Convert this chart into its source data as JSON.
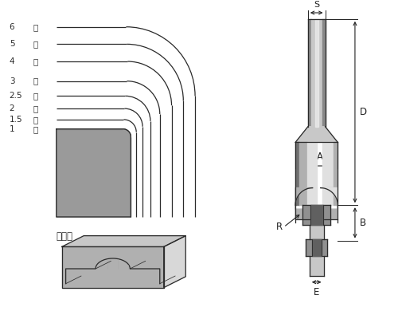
{
  "bg_color": "#ffffff",
  "line_color": "#2a2a2a",
  "profile_labels": [
    "6",
    "5",
    "4",
    "3",
    "2.5",
    "2",
    "1.5",
    "1"
  ],
  "label_suffix": "分",
  "workpiece_label": "被削材",
  "dim_labels": [
    "S",
    "D",
    "A",
    "B",
    "R",
    "E"
  ],
  "shank_color": "#c8c8c8",
  "shank_edge": "#666666",
  "shank_light": "#eeeeee",
  "shank_dark": "#888888",
  "body_color": "#b0b0b0",
  "body_light": "#e0e0e0",
  "body_dark": "#707070",
  "bearing_color": "#909090",
  "bearing_dark": "#606060",
  "wood_top": "#c8c8c8",
  "wood_front": "#b0b0b0",
  "wood_side": "#d8d8d8",
  "profile_fill": "#888888",
  "dim_color": "#222222"
}
